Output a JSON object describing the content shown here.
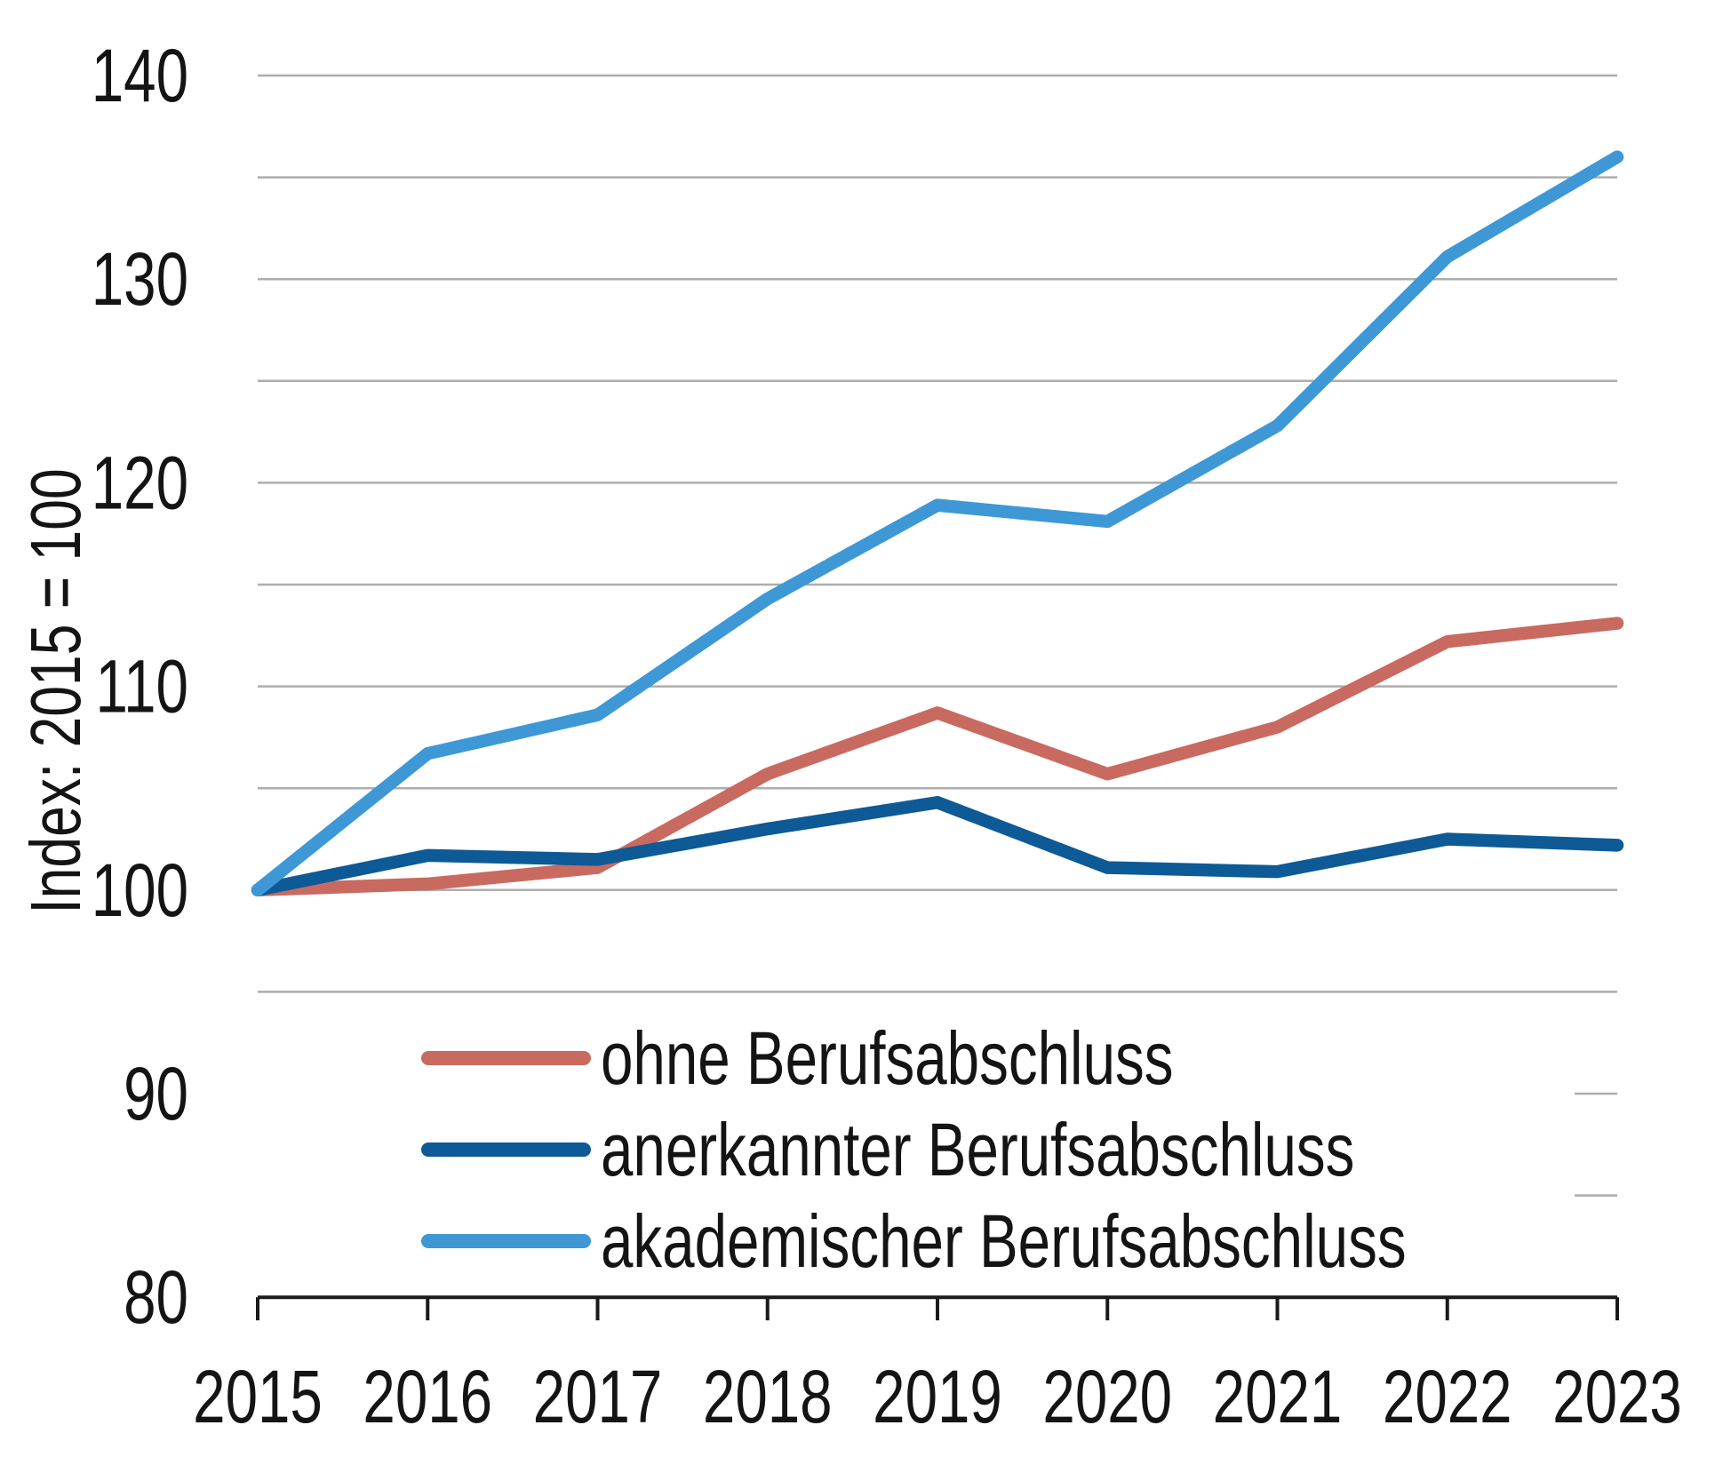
{
  "chart_data": {
    "type": "line",
    "title": "",
    "xlabel": "",
    "ylabel": "Index: 2015 = 100",
    "x": [
      2015,
      2016,
      2017,
      2018,
      2019,
      2020,
      2021,
      2022,
      2023
    ],
    "x_tick_labels": [
      "2015",
      "2016",
      "2017",
      "2018",
      "2019",
      "2020",
      "2021",
      "2022",
      "2023"
    ],
    "y_tick_labels": [
      140,
      130,
      120,
      110,
      100,
      90,
      80
    ],
    "ylim": [
      80,
      140
    ],
    "gridline_step": 5,
    "gridlines_full": [
      140,
      135,
      130,
      125,
      120,
      115,
      110,
      105,
      100,
      95
    ],
    "gridlines_stub": [
      90,
      85
    ],
    "grid_on": true,
    "legend_position": "inside-bottom-left",
    "series": [
      {
        "name": "ohne Berufsabschluss",
        "color": "#C96A60",
        "values": [
          100,
          100.3,
          101.1,
          105.7,
          108.7,
          105.7,
          108.0,
          112.2,
          113.1
        ]
      },
      {
        "name": "anerkannter Berufsabschluss",
        "color": "#0E5A96",
        "values": [
          100,
          101.7,
          101.5,
          103.0,
          104.3,
          101.1,
          100.9,
          102.5,
          102.2
        ]
      },
      {
        "name": "akademischer Berufsabschluss",
        "color": "#3E98D6",
        "values": [
          100,
          106.7,
          108.6,
          114.3,
          118.9,
          118.1,
          122.8,
          131.1,
          136.0
        ]
      }
    ],
    "colors": {
      "grid": "#ADADAD",
      "axis": "#1A1A1A",
      "text": "#141414",
      "background": "#FFFFFF"
    }
  }
}
